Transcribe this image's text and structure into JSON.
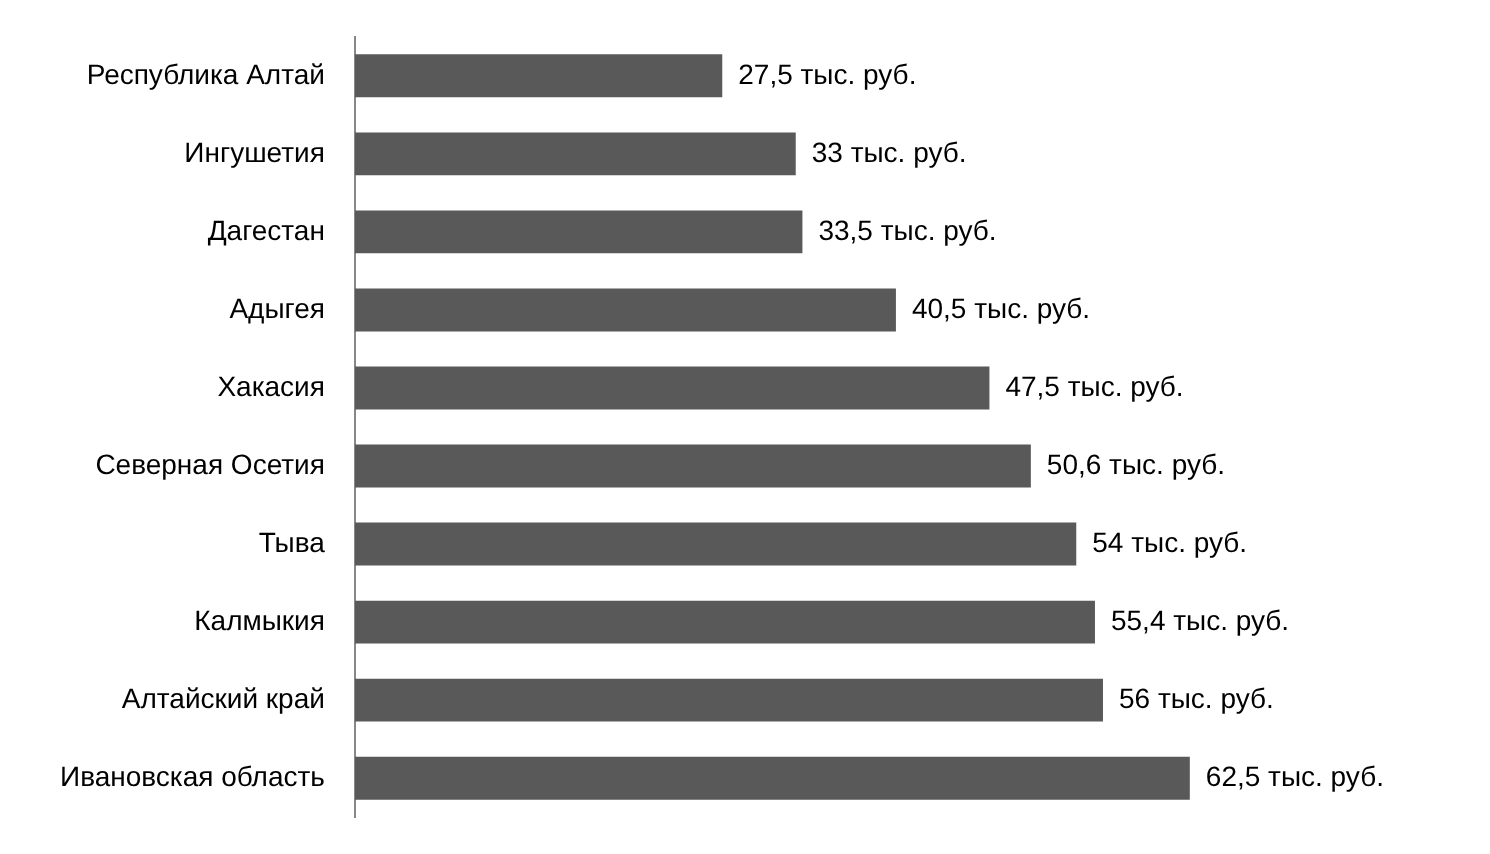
{
  "chart_data": {
    "type": "bar",
    "orientation": "horizontal",
    "categories": [
      "Республика Алтай",
      "Ингушетия",
      "Дагестан",
      "Адыгея",
      "Хакасия",
      "Северная Осетия",
      "Тыва",
      "Калмыкия",
      "Алтайский край",
      "Ивановская область"
    ],
    "values": [
      27.5,
      33,
      33.5,
      40.5,
      47.5,
      50.6,
      54,
      55.4,
      56,
      62.5
    ],
    "value_labels": [
      "27,5 тыс. руб.",
      "33 тыс. руб.",
      "33,5 тыс. руб.",
      "40,5 тыс. руб.",
      "47,5 тыс. руб.",
      "50,6 тыс. руб.",
      "54 тыс. руб.",
      "55,4 тыс. руб.",
      "56 тыс. руб.",
      "62,5 тыс. руб."
    ],
    "color": "#595959",
    "legend": false,
    "tick_labels": "y"
  }
}
